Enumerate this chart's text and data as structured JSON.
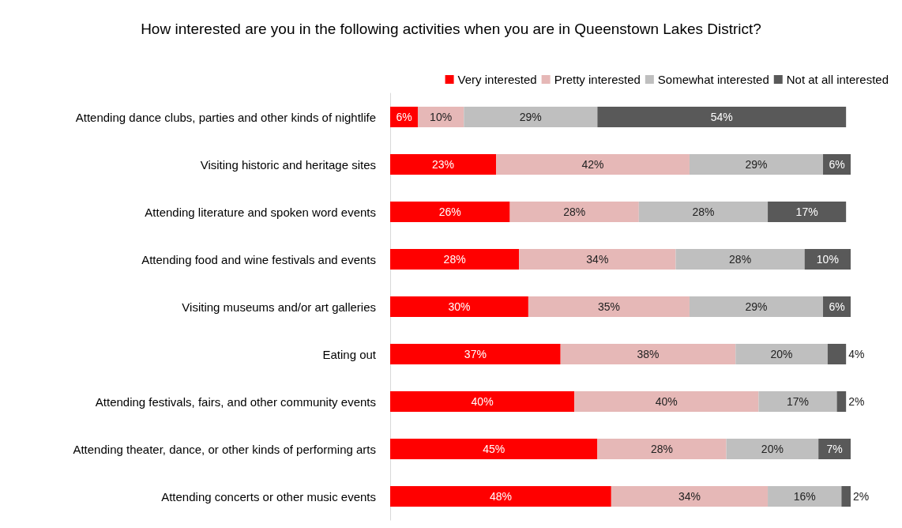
{
  "chart_data": {
    "type": "bar",
    "orientation": "horizontal",
    "stacked": true,
    "title": "How interested are you in the following activities when you are in Queenstown Lakes District?",
    "categories": [
      "Attending dance clubs, parties and other kinds of nightlife",
      "Visiting historic and heritage sites",
      "Attending literature and spoken word events",
      "Attending food and wine festivals and events",
      "Visiting museums and/or art galleries",
      "Eating out",
      "Attending festivals, fairs, and other community events",
      "Attending theater, dance, or other kinds of performing arts",
      "Attending concerts or other music events"
    ],
    "series": [
      {
        "name": "Very interested",
        "color": "#ff0000",
        "values": [
          6,
          23,
          26,
          28,
          30,
          37,
          40,
          45,
          48
        ],
        "value_labels": [
          "6%",
          "23%",
          "26%",
          "28%",
          "30%",
          "37%",
          "40%",
          "45%",
          "48%"
        ]
      },
      {
        "name": "Pretty interested",
        "color": "#e6b8b7",
        "values": [
          10,
          42,
          28,
          34,
          35,
          38,
          40,
          28,
          34
        ],
        "value_labels": [
          "10%",
          "42%",
          "28%",
          "34%",
          "35%",
          "38%",
          "40%",
          "28%",
          "34%"
        ]
      },
      {
        "name": "Somewhat interested",
        "color": "#bfbfbf",
        "values": [
          29,
          29,
          28,
          28,
          29,
          20,
          17,
          20,
          16
        ],
        "value_labels": [
          "29%",
          "29%",
          "28%",
          "28%",
          "29%",
          "20%",
          "17%",
          "20%",
          "16%"
        ]
      },
      {
        "name": "Not at all interested",
        "color": "#595959",
        "values": [
          54,
          6,
          17,
          10,
          6,
          4,
          2,
          7,
          2
        ],
        "value_labels": [
          "54%",
          "6%",
          "17%",
          "10%",
          "6%",
          "4%",
          "2%",
          "7%",
          "2%"
        ]
      }
    ],
    "legend": "top right"
  }
}
